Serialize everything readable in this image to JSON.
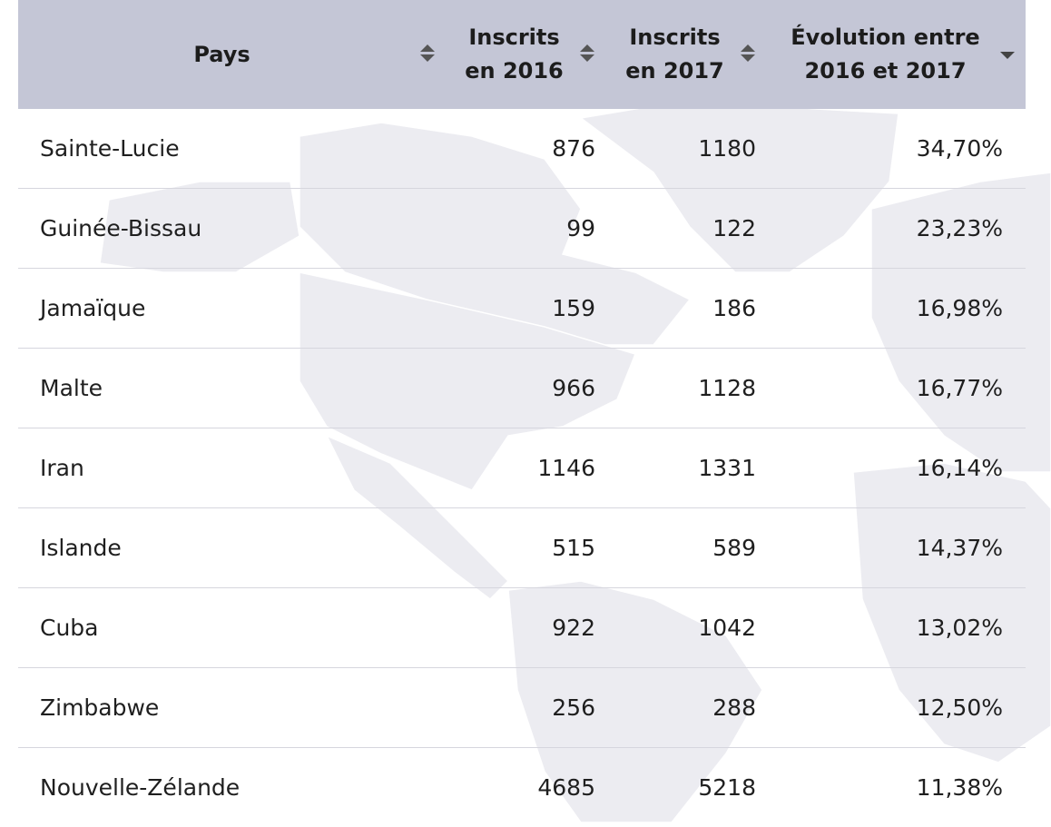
{
  "table": {
    "headers": {
      "country": "Pays",
      "enrolled_2016": [
        "Inscrits",
        "en 2016"
      ],
      "enrolled_2017": [
        "Inscrits",
        "en 2017"
      ],
      "evolution": [
        "Évolution entre",
        "2016 et 2017"
      ]
    },
    "sort": {
      "column": "evolution",
      "direction": "descending"
    },
    "rows": [
      {
        "country": "Sainte-Lucie",
        "enrolled_2016": "876",
        "enrolled_2017": "1180",
        "evolution": "34,70%"
      },
      {
        "country": "Guinée-Bissau",
        "enrolled_2016": "99",
        "enrolled_2017": "122",
        "evolution": "23,23%"
      },
      {
        "country": "Jamaïque",
        "enrolled_2016": "159",
        "enrolled_2017": "186",
        "evolution": "16,98%"
      },
      {
        "country": "Malte",
        "enrolled_2016": "966",
        "enrolled_2017": "1128",
        "evolution": "16,77%"
      },
      {
        "country": "Iran",
        "enrolled_2016": "1146",
        "enrolled_2017": "1331",
        "evolution": "16,14%"
      },
      {
        "country": "Islande",
        "enrolled_2016": "515",
        "enrolled_2017": "589",
        "evolution": "14,37%"
      },
      {
        "country": "Cuba",
        "enrolled_2016": "922",
        "enrolled_2017": "1042",
        "evolution": "13,02%"
      },
      {
        "country": "Zimbabwe",
        "enrolled_2016": "256",
        "enrolled_2017": "288",
        "evolution": "12,50%"
      },
      {
        "country": "Nouvelle-Zélande",
        "enrolled_2016": "4685",
        "enrolled_2017": "5218",
        "evolution": "11,38%"
      }
    ]
  },
  "colors": {
    "header_bg": "#c4c6d6",
    "row_divider": "#d6d6de",
    "map_land": "#ebebf0"
  }
}
